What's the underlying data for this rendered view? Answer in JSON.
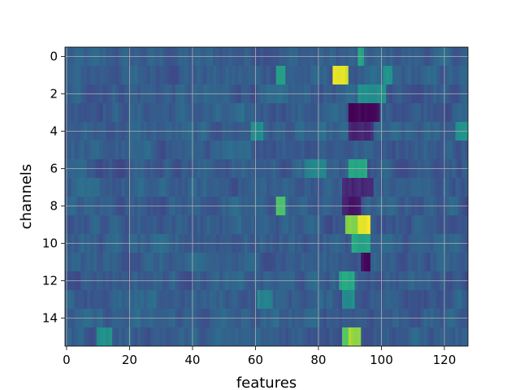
{
  "chart_data": {
    "type": "heatmap",
    "title": "",
    "xlabel": "features",
    "ylabel": "channels",
    "colormap": "viridis",
    "grid": true,
    "rows": 16,
    "cols": 128,
    "xlim": [
      -0.5,
      127.5
    ],
    "ylim": [
      15.5,
      -0.5
    ],
    "xticks": [
      0,
      20,
      40,
      60,
      80,
      100,
      120
    ],
    "yticks": [
      0,
      2,
      4,
      6,
      8,
      10,
      12,
      14
    ],
    "color_range": [
      0,
      1
    ],
    "background_level": 0.3,
    "highlights": [
      {
        "row": 0,
        "from": 93,
        "to": 94,
        "level": 0.6
      },
      {
        "row": 1,
        "from": 85,
        "to": 89,
        "level": 0.95
      },
      {
        "row": 1,
        "from": 67,
        "to": 69,
        "level": 0.55
      },
      {
        "row": 1,
        "from": 101,
        "to": 103,
        "level": 0.5
      },
      {
        "row": 2,
        "from": 93,
        "to": 101,
        "level": 0.5
      },
      {
        "row": 3,
        "from": 90,
        "to": 99,
        "level": 0.02
      },
      {
        "row": 4,
        "from": 90,
        "to": 97,
        "level": 0.12
      },
      {
        "row": 4,
        "from": 59,
        "to": 62,
        "level": 0.5
      },
      {
        "row": 4,
        "from": 124,
        "to": 127,
        "level": 0.5
      },
      {
        "row": 6,
        "from": 90,
        "to": 95,
        "level": 0.6
      },
      {
        "row": 6,
        "from": 76,
        "to": 82,
        "level": 0.45
      },
      {
        "row": 7,
        "from": 88,
        "to": 97,
        "level": 0.12
      },
      {
        "row": 8,
        "from": 67,
        "to": 69,
        "level": 0.7
      },
      {
        "row": 8,
        "from": 88,
        "to": 93,
        "level": 0.08
      },
      {
        "row": 9,
        "from": 89,
        "to": 93,
        "level": 0.8
      },
      {
        "row": 9,
        "from": 93,
        "to": 96,
        "level": 0.98
      },
      {
        "row": 10,
        "from": 91,
        "to": 96,
        "level": 0.6
      },
      {
        "row": 11,
        "from": 94,
        "to": 96,
        "level": 0.02
      },
      {
        "row": 12,
        "from": 87,
        "to": 91,
        "level": 0.6
      },
      {
        "row": 13,
        "from": 88,
        "to": 91,
        "level": 0.5
      },
      {
        "row": 13,
        "from": 61,
        "to": 65,
        "level": 0.45
      },
      {
        "row": 15,
        "from": 88,
        "to": 92,
        "level": 0.75
      },
      {
        "row": 15,
        "from": 90,
        "to": 93,
        "level": 0.85
      },
      {
        "row": 15,
        "from": 10,
        "to": 14,
        "level": 0.5
      }
    ]
  }
}
